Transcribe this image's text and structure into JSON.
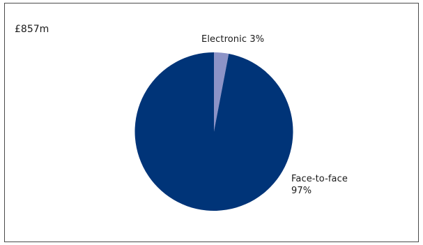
{
  "chart_data": {
    "type": "pie",
    "title": "£857m",
    "slices": [
      {
        "label": "Electronic",
        "value": 3,
        "value_label": "3%",
        "color": "#8c93c7"
      },
      {
        "label": "Face-to-face",
        "value": 97,
        "value_label": "97%",
        "color": "#003478"
      }
    ],
    "start_angle": "12 o'clock",
    "direction": "clockwise"
  }
}
